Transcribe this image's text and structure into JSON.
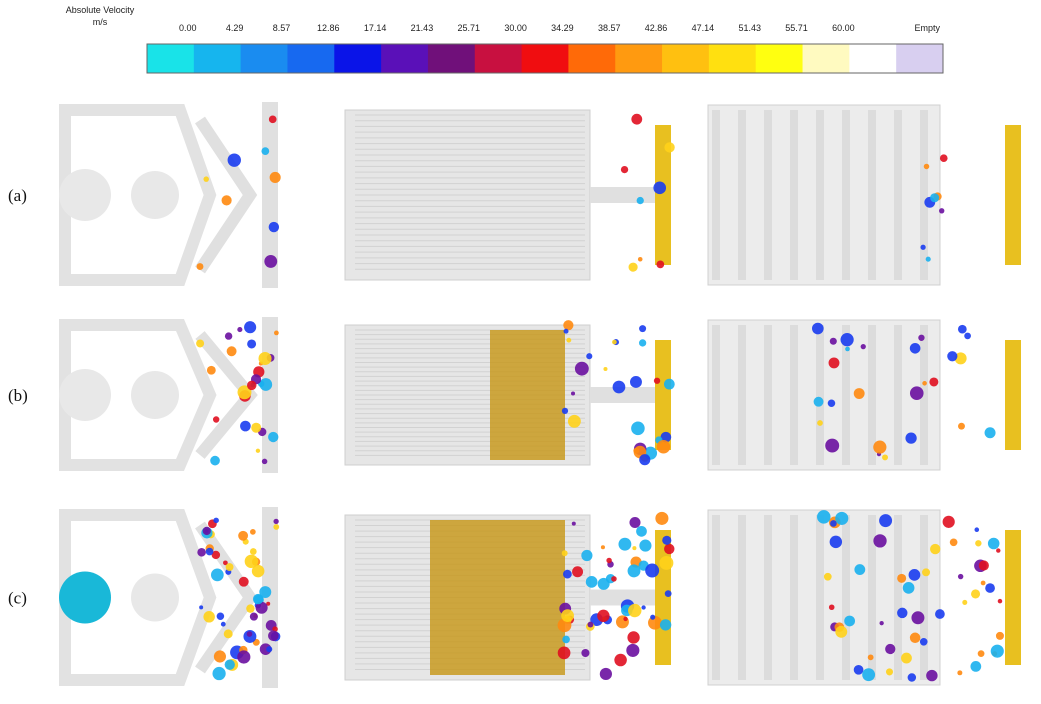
{
  "legend": {
    "title": "Absolute Velocity",
    "unit": "m/s",
    "labels": [
      "0.00",
      "4.29",
      "8.57",
      "12.86",
      "17.14",
      "21.43",
      "25.71",
      "30.00",
      "34.29",
      "38.57",
      "42.86",
      "47.14",
      "51.43",
      "55.71",
      "60.00",
      "Empty"
    ],
    "colors": [
      "#19e3e8",
      "#16b5ee",
      "#1a8cf0",
      "#1769f0",
      "#0a14e8",
      "#5a10b8",
      "#70107a",
      "#c81040",
      "#f00d10",
      "#ff6a08",
      "#ff9a10",
      "#ffc010",
      "#ffe010",
      "#ffff10",
      "#fffac0",
      "#ffffff",
      "#d8cff0"
    ]
  },
  "rows": [
    {
      "label": "(a)"
    },
    {
      "label": "(b)"
    },
    {
      "label": "(c)"
    }
  ]
}
